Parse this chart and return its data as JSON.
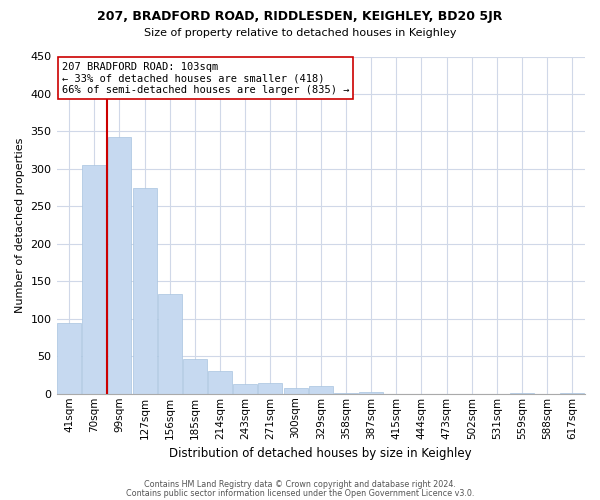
{
  "title": "207, BRADFORD ROAD, RIDDLESDEN, KEIGHLEY, BD20 5JR",
  "subtitle": "Size of property relative to detached houses in Keighley",
  "xlabel": "Distribution of detached houses by size in Keighley",
  "ylabel": "Number of detached properties",
  "bar_labels": [
    "41sqm",
    "70sqm",
    "99sqm",
    "127sqm",
    "156sqm",
    "185sqm",
    "214sqm",
    "243sqm",
    "271sqm",
    "300sqm",
    "329sqm",
    "358sqm",
    "387sqm",
    "415sqm",
    "444sqm",
    "473sqm",
    "502sqm",
    "531sqm",
    "559sqm",
    "588sqm",
    "617sqm"
  ],
  "bar_values": [
    95,
    305,
    343,
    275,
    133,
    47,
    31,
    13,
    15,
    8,
    10,
    1,
    2,
    0,
    0,
    0,
    0,
    0,
    1,
    0,
    1
  ],
  "bar_color": "#c6d9f0",
  "bar_edge_color": "#a8c4e0",
  "highlight_line_color": "#cc0000",
  "annotation_title": "207 BRADFORD ROAD: 103sqm",
  "annotation_line1": "← 33% of detached houses are smaller (418)",
  "annotation_line2": "66% of semi-detached houses are larger (835) →",
  "annotation_box_color": "#ffffff",
  "annotation_box_edge": "#cc0000",
  "ylim": [
    0,
    450
  ],
  "yticks": [
    0,
    50,
    100,
    150,
    200,
    250,
    300,
    350,
    400,
    450
  ],
  "footer1": "Contains HM Land Registry data © Crown copyright and database right 2024.",
  "footer2": "Contains public sector information licensed under the Open Government Licence v3.0.",
  "background_color": "#ffffff",
  "grid_color": "#d0d8e8"
}
